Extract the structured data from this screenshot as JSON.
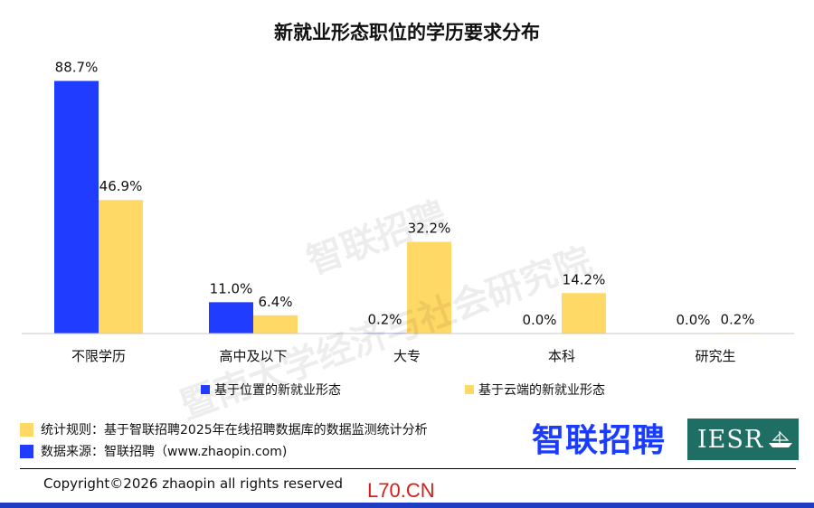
{
  "chart_data": {
    "type": "bar",
    "title": "新就业形态职位的学历要求分布",
    "categories": [
      "不限学历",
      "高中及以下",
      "大专",
      "本科",
      "研究生"
    ],
    "series": [
      {
        "name": "基于位置的新就业形态",
        "values": [
          88.7,
          11.0,
          0.2,
          0.0,
          0.0
        ],
        "labels": [
          "88.7%",
          "11.0%",
          "0.2%",
          "0.0%",
          "0.0%"
        ],
        "color": "#1f3cff"
      },
      {
        "name": "基于云端的新就业形态",
        "values": [
          46.9,
          6.4,
          32.2,
          14.2,
          0.2
        ],
        "labels": [
          "46.9%",
          "6.4%",
          "32.2%",
          "14.2%",
          "0.2%"
        ],
        "color": "#ffd966"
      }
    ],
    "ylim": [
      0,
      100
    ],
    "xlabel": "",
    "ylabel": "",
    "grid": false,
    "legend_position": "bottom"
  },
  "watermark": {
    "line1": "智联招聘",
    "line2": "暨南大学经济与社会研究院"
  },
  "notes": {
    "rule": "统计规则：基于智联招聘2025年在线招聘数据库的数据监测统计分析",
    "source": "数据来源：智联招聘（www.zhaopin.com)",
    "rule_color": "#ffd966",
    "source_color": "#1f3cff"
  },
  "logos": {
    "zhaopin": "智联招聘",
    "iesr": "IESR"
  },
  "footer": {
    "copyright": "Copyright©2026 zhaopin all rights reserved",
    "stamp": "L70.CN"
  }
}
